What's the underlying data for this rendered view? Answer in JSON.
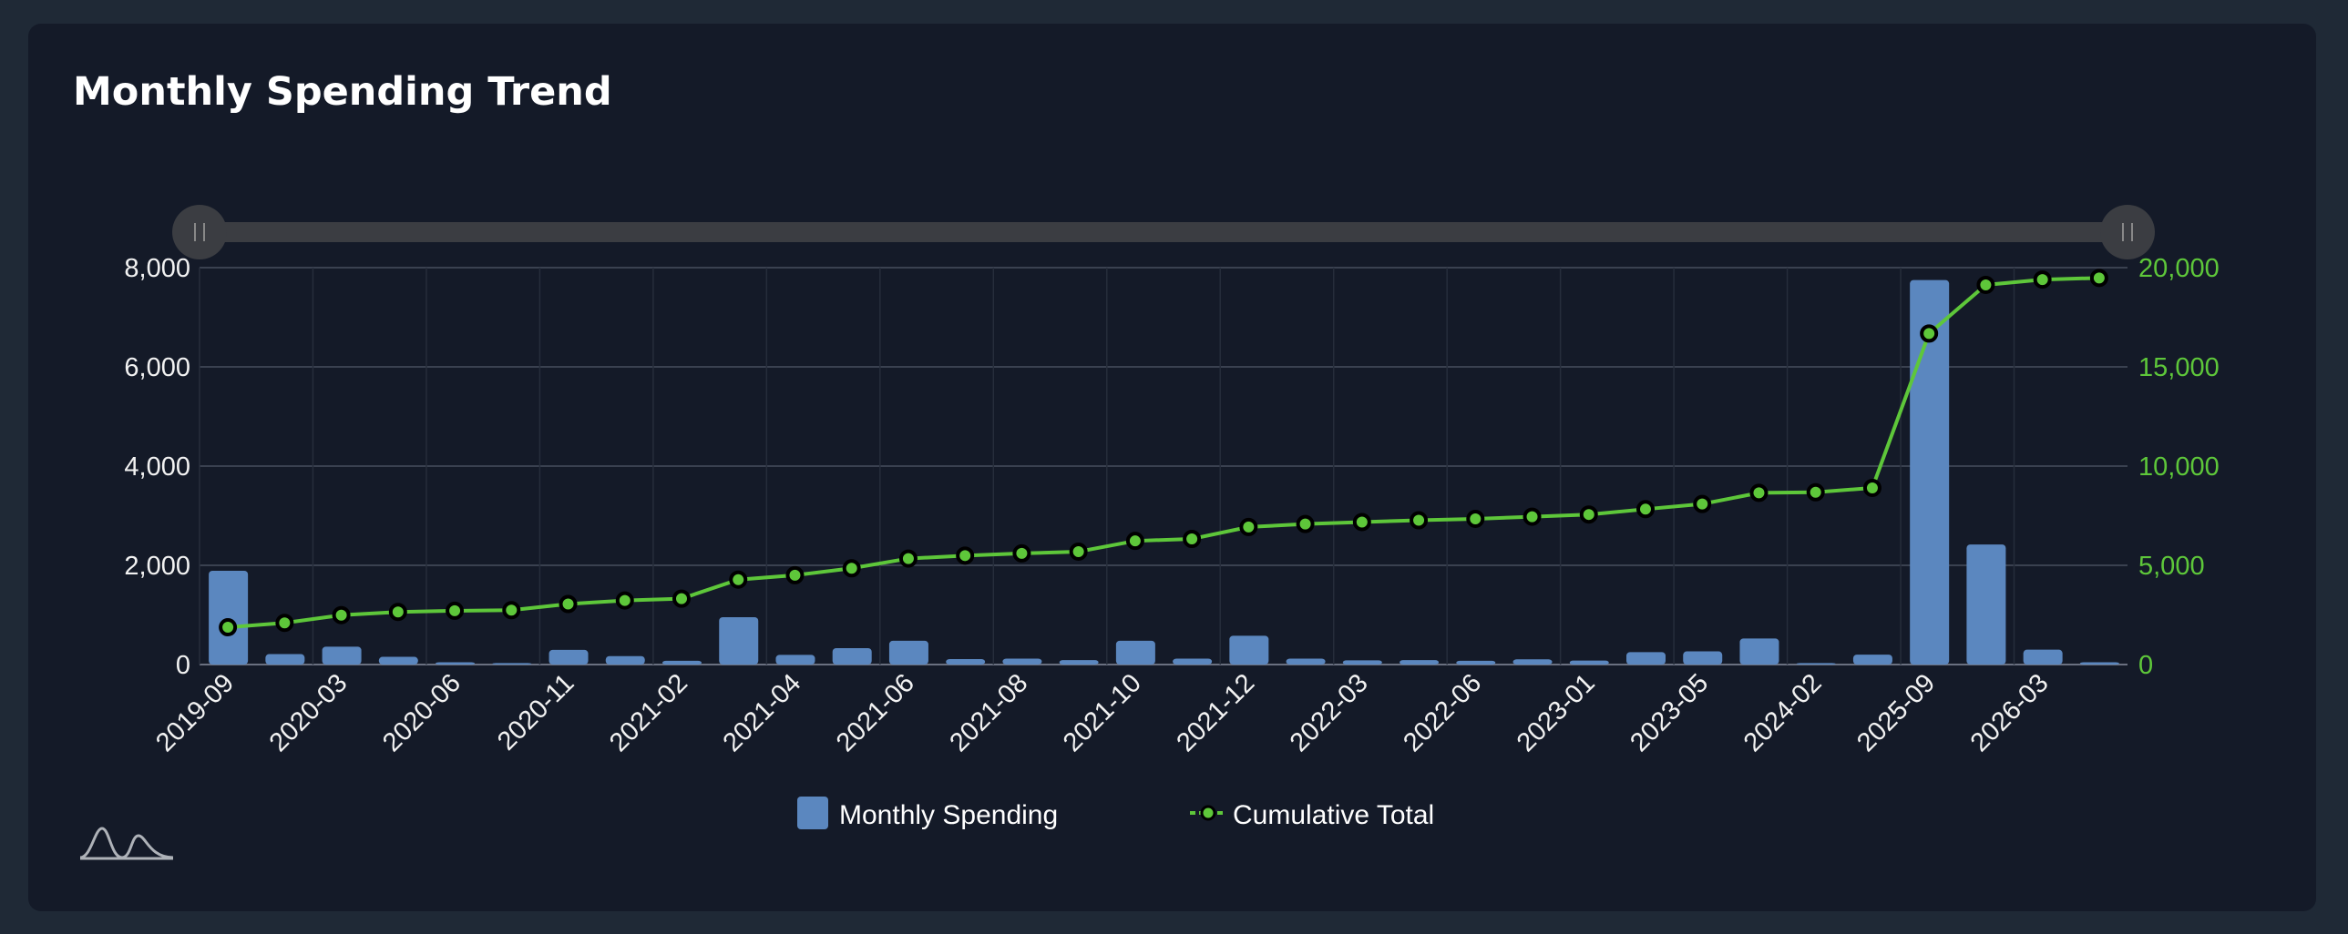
{
  "title": "Monthly Spending Trend",
  "colors": {
    "bar": "#5b87bf",
    "line": "#5ec73a",
    "grid": "#3a4150",
    "background": "#141a28"
  },
  "chart_data": {
    "type": "bar",
    "title": "Monthly Spending Trend",
    "x_tick_labels": [
      "2019-09",
      "2020-03",
      "2020-06",
      "2020-11",
      "2021-02",
      "2021-04",
      "2021-06",
      "2021-08",
      "2021-10",
      "2021-12",
      "2022-03",
      "2022-06",
      "2023-01",
      "2023-05",
      "2024-02",
      "2025-09",
      "2026-03"
    ],
    "y_left": {
      "ylim": [
        0,
        8000
      ],
      "ticks": [
        "0",
        "2,000",
        "4,000",
        "6,000",
        "8,000"
      ]
    },
    "y_right": {
      "ylim": [
        0,
        20000
      ],
      "ticks": [
        "0",
        "5,000",
        "10,000",
        "15,000",
        "20,000"
      ]
    },
    "series": [
      {
        "name": "Monthly Spending",
        "type": "bar",
        "axis": "left",
        "values": [
          1890,
          210,
          360,
          155,
          45,
          30,
          295,
          170,
          75,
          955,
          195,
          330,
          480,
          110,
          120,
          90,
          480,
          120,
          580,
          120,
          85,
          90,
          75,
          105,
          80,
          250,
          265,
          525,
          30,
          200,
          7750,
          2420,
          300,
          45
        ]
      },
      {
        "name": "Cumulative Total",
        "type": "line",
        "axis": "right",
        "values": [
          1880,
          2100,
          2490,
          2650,
          2710,
          2740,
          3050,
          3230,
          3320,
          4280,
          4500,
          4850,
          5340,
          5490,
          5600,
          5690,
          6230,
          6330,
          6930,
          7080,
          7180,
          7270,
          7340,
          7450,
          7560,
          7830,
          8090,
          8650,
          8680,
          8900,
          16680,
          19130,
          19400,
          19480
        ]
      }
    ],
    "legend": [
      "Monthly Spending",
      "Cumulative Total"
    ],
    "legend_position": "bottom",
    "grid": true,
    "range_slider": {
      "start": 0,
      "end": 1
    }
  }
}
